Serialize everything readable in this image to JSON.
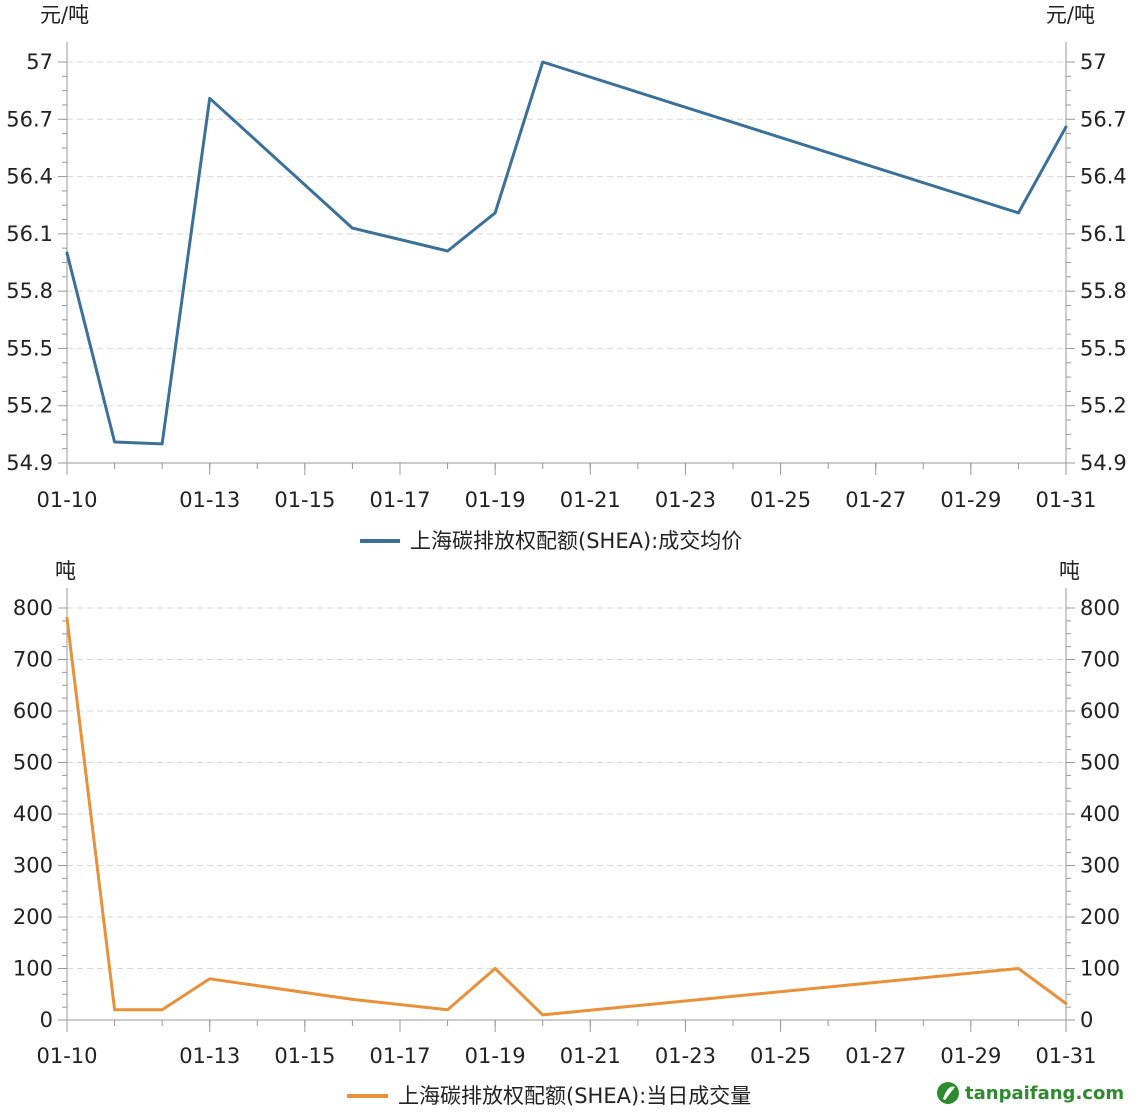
{
  "chart_data": [
    {
      "type": "line",
      "unit_left": "元/吨",
      "unit_right": "元/吨",
      "x": [
        "01-10",
        "01-11",
        "01-12",
        "01-13",
        "01-16",
        "01-18",
        "01-19",
        "01-20",
        "01-30",
        "01-31"
      ],
      "x_tick_labels": [
        "01-10",
        "01-13",
        "01-15",
        "01-17",
        "01-19",
        "01-21",
        "01-23",
        "01-25",
        "01-27",
        "01-29",
        "01-31"
      ],
      "series": [
        {
          "name": "上海碳排放权配额(SHEA):成交均价",
          "color": "#3b7198",
          "values": [
            56.0,
            55.01,
            55.0,
            56.81,
            56.13,
            56.01,
            56.21,
            57.0,
            56.21,
            56.66
          ]
        }
      ],
      "ylim": [
        54.9,
        57.0
      ],
      "y_ticks": [
        "54.9",
        "55.2",
        "55.5",
        "55.8",
        "56.1",
        "56.4",
        "56.7",
        "57"
      ],
      "grid": true,
      "legend_position": "bottom-center"
    },
    {
      "type": "line",
      "unit_left": "吨",
      "unit_right": "吨",
      "x": [
        "01-10",
        "01-11",
        "01-12",
        "01-13",
        "01-16",
        "01-18",
        "01-19",
        "01-20",
        "01-30",
        "01-31"
      ],
      "x_tick_labels": [
        "01-10",
        "01-13",
        "01-15",
        "01-17",
        "01-19",
        "01-21",
        "01-23",
        "01-25",
        "01-27",
        "01-29",
        "01-31"
      ],
      "series": [
        {
          "name": "上海碳排放权配额(SHEA):当日成交量",
          "color": "#e8913a",
          "values": [
            780,
            20,
            20,
            80,
            40,
            20,
            100,
            10,
            100,
            32
          ]
        }
      ],
      "ylim": [
        0,
        800
      ],
      "y_ticks": [
        "0",
        "100",
        "200",
        "300",
        "400",
        "500",
        "600",
        "700",
        "800"
      ],
      "grid": true,
      "legend_position": "bottom-center"
    }
  ],
  "watermark": {
    "text": "tanpaifang.com",
    "color": "#2f8a2f"
  }
}
